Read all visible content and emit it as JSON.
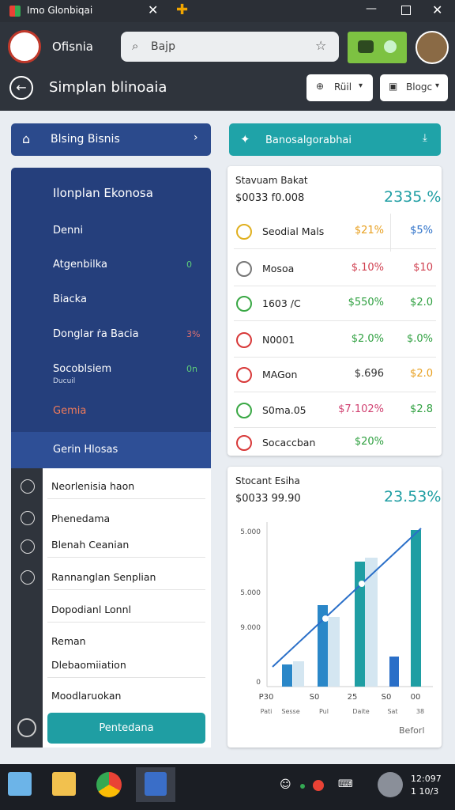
{
  "browser": {
    "tab_title": "Imo Glonbiqai"
  },
  "header": {
    "app_name": "Ofisnia",
    "search": "Bajp",
    "title": "Simplan blinoaia",
    "button_1": "Rüil",
    "button_2": "Blogc"
  },
  "left": {
    "top_button": "Blsing Bisnis",
    "nav": [
      {
        "label": "Ilonplan Ekonosa"
      },
      {
        "label": "Denni"
      },
      {
        "label": "Atgenbilka",
        "badge": "0"
      },
      {
        "label": "Biacka"
      },
      {
        "label": "Donglar ṙa Bacia",
        "badge": "3%"
      },
      {
        "label": "Socoblsiem",
        "sublabel": "Ducuil",
        "badge": "0n"
      },
      {
        "label": "Gemia"
      },
      {
        "label": "Gerin Hlosas"
      }
    ],
    "list": [
      "Neorlenisia haon",
      "Phenedama",
      "Blenah Ceanian",
      "Rannanglan Senplian",
      "Dopodianl Lonnl",
      "Reman",
      "Dlebaomiiation",
      "Moodlaruokan"
    ],
    "action": "Pentedana"
  },
  "right": {
    "top_button": "Banosalgorabhai",
    "card_1": {
      "title": "Stavuam Bakat",
      "subtitle": "$0033 f0.008",
      "value": "2335.%",
      "rows": [
        [
          "Seodial Mals",
          "$21%",
          "$5%"
        ],
        [
          "Mosoa",
          "$.10%",
          "$10"
        ],
        [
          "1603 /C",
          "$550%",
          "$2.0"
        ],
        [
          "N0001",
          "$2.0%",
          "$.0%"
        ],
        [
          "MAGon",
          "$.696",
          "$2.0"
        ],
        [
          "S0ma.05",
          "$7.102%",
          "$2.8"
        ],
        [
          "Socaccban",
          "$20%"
        ]
      ]
    },
    "card_2": {
      "title": "Stocant Esiha",
      "subtitle": "$0033 99.90",
      "value": "23.53%",
      "y_labels": [
        "5.000",
        "5.000",
        "9.000",
        "0"
      ],
      "x_labels": [
        "P30",
        "S0",
        "25",
        "S0",
        "00"
      ],
      "x_sublabels": [
        "Pati",
        "Sesse",
        "Pul",
        "Daite",
        "Sat",
        "38"
      ],
      "footer": "Beforl"
    }
  },
  "taskbar": {
    "time": "12:097",
    "date": "1 10/3"
  }
}
